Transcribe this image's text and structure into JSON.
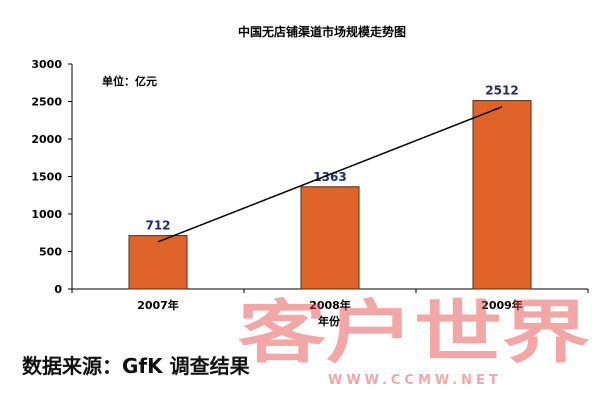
{
  "chart_data": {
    "type": "bar",
    "title": "中国无店铺渠道市场规模走势图",
    "unit_note": "单位：亿元",
    "categories": [
      "2007年",
      "2008年",
      "2009年"
    ],
    "values": [
      712,
      1363,
      2512
    ],
    "data_labels": [
      "712",
      "1363",
      "2512"
    ],
    "xlabel": "年份",
    "ylabel": "",
    "ylim": [
      0,
      3000
    ],
    "yticks": [
      "0",
      "500",
      "1000",
      "1500",
      "2000",
      "2500",
      "3000"
    ],
    "trendline": true,
    "grid": false,
    "legend": "none"
  },
  "source": "数据来源：GfK 调查结果",
  "watermark": {
    "text": "客户世界",
    "url": "WWW.CCMW.NET"
  },
  "colors": {
    "bar": "#e0642a",
    "bar_stroke": "#5a2a10",
    "trend": "#000000",
    "label": "#1f2a6b",
    "watermark": "#e23a3a"
  }
}
